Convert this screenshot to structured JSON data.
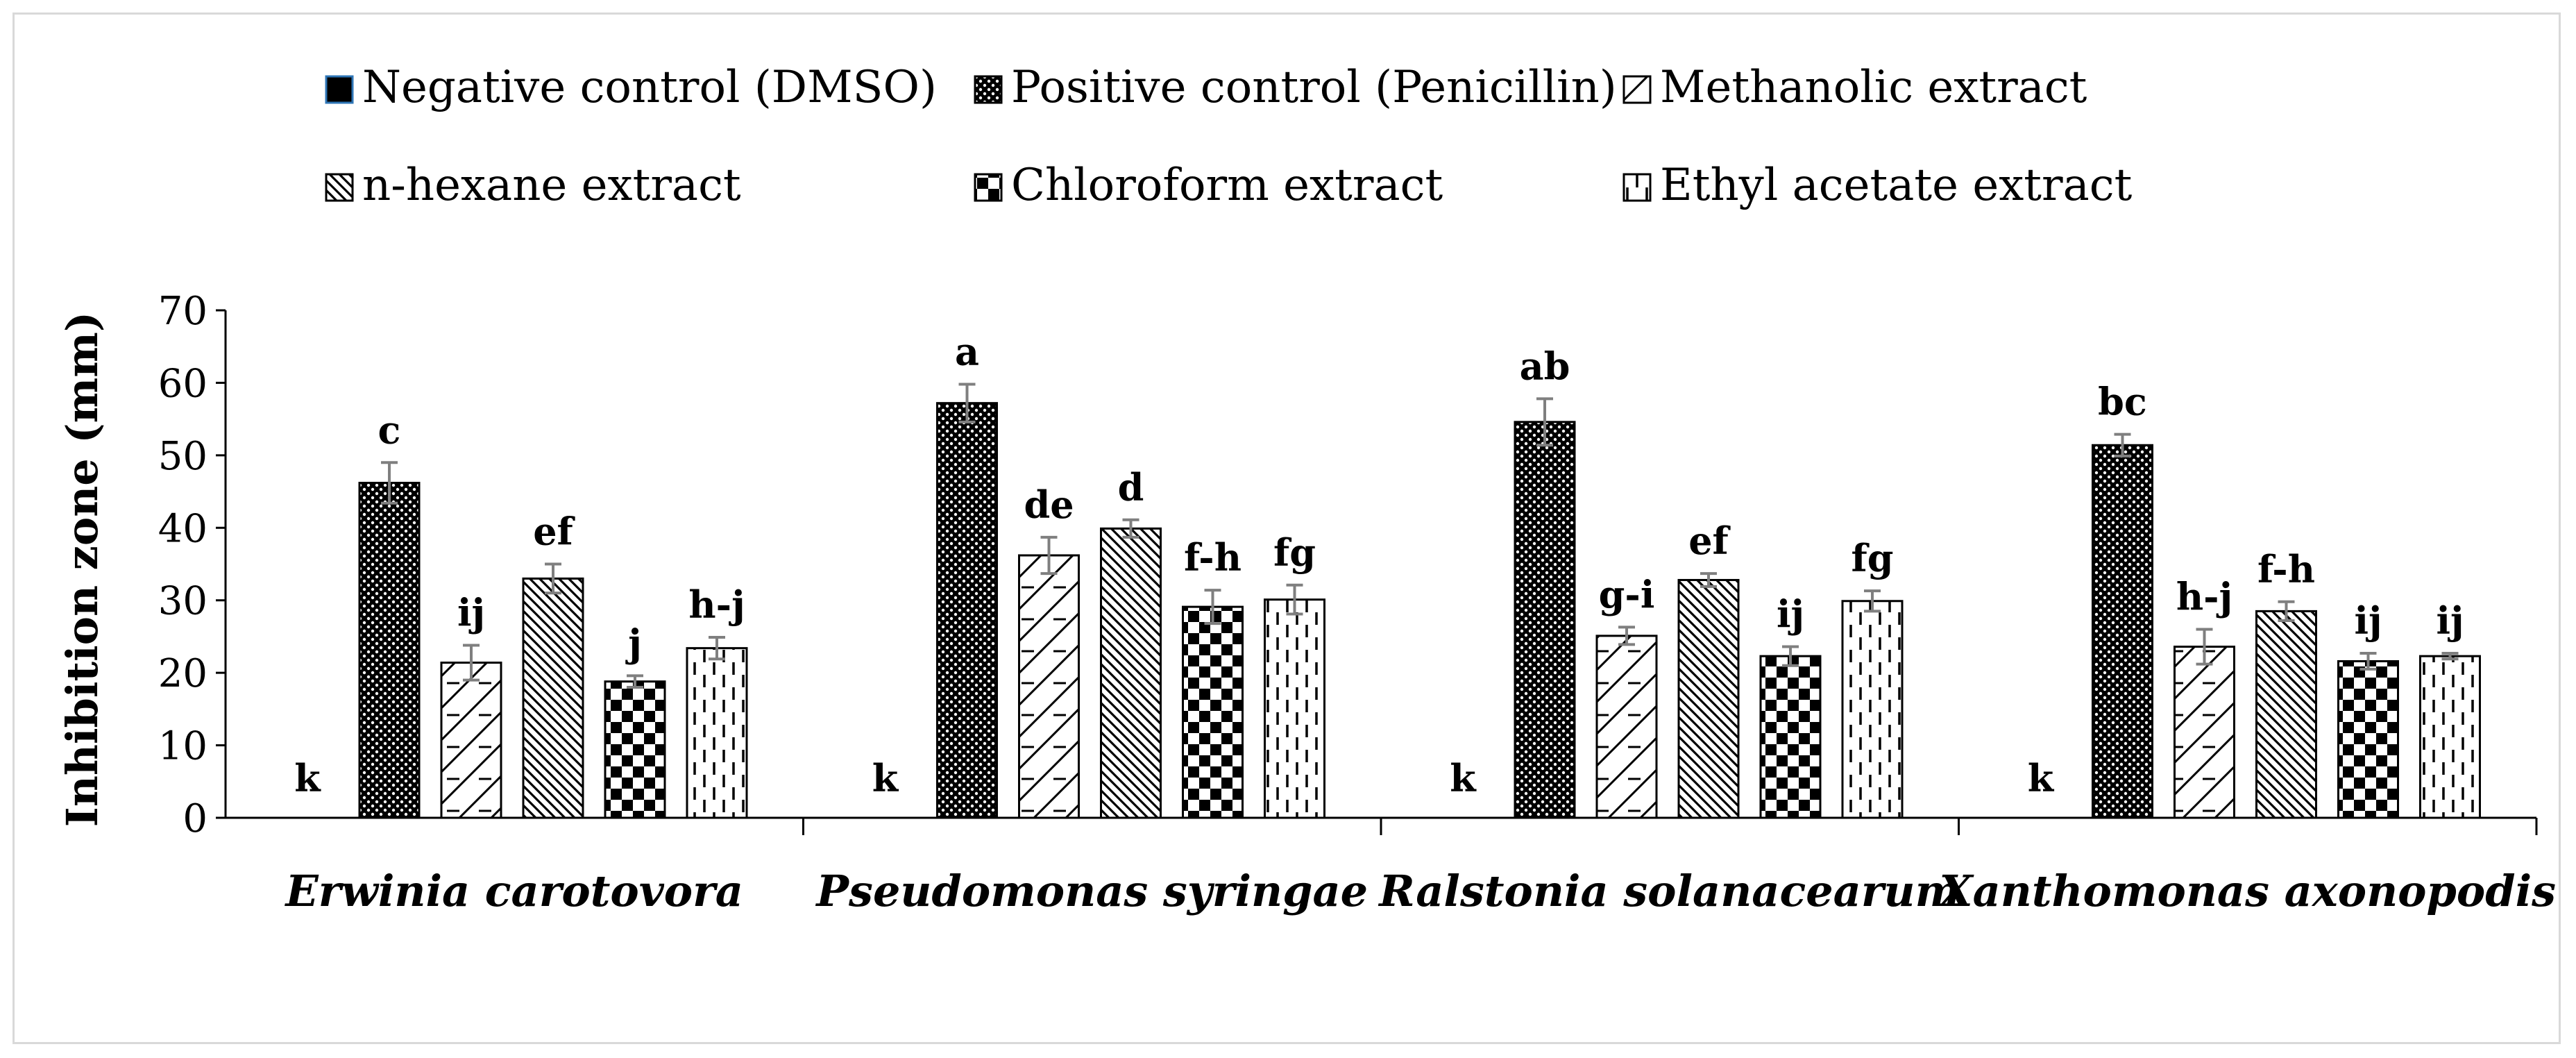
{
  "chart_data": {
    "type": "bar",
    "ylabel": "Inhibition zone (mm)",
    "ylim": [
      0,
      70
    ],
    "yticks": [
      0,
      10,
      20,
      30,
      40,
      50,
      60,
      70
    ],
    "grid": false,
    "legend_position": "top",
    "categories": [
      "Erwinia carotovora",
      "Pseudomonas syringae",
      "Ralstonia solanacearum",
      "Xanthomonas axonopodis"
    ],
    "series": [
      {
        "name": "Negative control (DMSO)",
        "pattern": "solid",
        "values": [
          0,
          0,
          0,
          0
        ],
        "errors": [
          0,
          0,
          0,
          0
        ],
        "letters": [
          "k",
          "k",
          "k",
          "k"
        ]
      },
      {
        "name": "Positive control (Penicillin)",
        "pattern": "dots",
        "values": [
          46.2,
          57.2,
          54.6,
          51.4
        ],
        "errors": [
          2.8,
          2.6,
          3.2,
          1.5
        ],
        "letters": [
          "c",
          "a",
          "ab",
          "bc"
        ]
      },
      {
        "name": "Methanolic extract",
        "pattern": "zigzag",
        "values": [
          21.4,
          36.2,
          25.1,
          23.6
        ],
        "errors": [
          2.4,
          2.5,
          1.2,
          2.4
        ],
        "letters": [
          "ij",
          "de",
          "g-i",
          "h-j"
        ]
      },
      {
        "name": "n-hexane extract",
        "pattern": "diagonal",
        "values": [
          33.0,
          39.9,
          32.8,
          28.5
        ],
        "errors": [
          2.0,
          1.2,
          0.9,
          1.3
        ],
        "letters": [
          "ef",
          "d",
          "ef",
          "f-h"
        ]
      },
      {
        "name": "Chloroform extract",
        "pattern": "checker",
        "values": [
          18.8,
          29.1,
          22.3,
          21.6
        ],
        "errors": [
          0.8,
          2.3,
          1.3,
          1.1
        ],
        "letters": [
          "j",
          "f-h",
          "ij",
          "ij"
        ]
      },
      {
        "name": "Ethyl acetate extract",
        "pattern": "dashed",
        "values": [
          23.4,
          30.1,
          29.9,
          22.3
        ],
        "errors": [
          1.5,
          2.0,
          1.4,
          0.4
        ],
        "letters": [
          "h-j",
          "fg",
          "fg",
          "ij"
        ]
      }
    ],
    "colors": {
      "fill": "#000000",
      "bar_fill": "#ffffff",
      "error_bar": "#7f7f7f",
      "frame": "#d9d9d9",
      "legend_outline": "#2e75b6"
    }
  }
}
